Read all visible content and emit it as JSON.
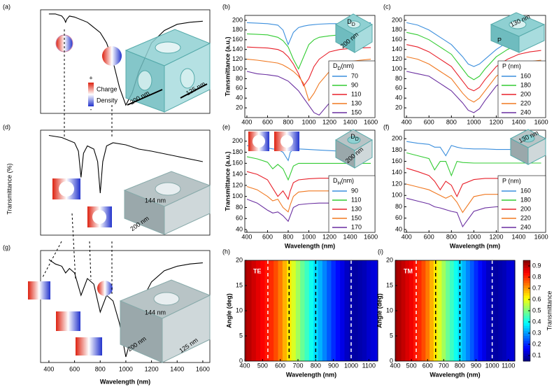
{
  "chart_data": [
    {
      "panel": "(a)",
      "type": "line",
      "color": "#000000",
      "xlim": [
        335,
        1655
      ],
      "ylim": [
        0,
        100
      ],
      "x": [
        400,
        450,
        500,
        520,
        530,
        540,
        560,
        600,
        700,
        800,
        850,
        900,
        950,
        1000,
        1050,
        1100,
        1200,
        1300,
        1400,
        1500,
        1600
      ],
      "series": [
        {
          "values": [
            96,
            96,
            94,
            91,
            88,
            91,
            94,
            93,
            88,
            78,
            68,
            50,
            25,
            8,
            20,
            40,
            68,
            80,
            86,
            88,
            89
          ]
        }
      ],
      "annotations": [
        "+",
        "Charge",
        "Density",
        "-",
        "200 nm",
        "125 nm"
      ]
    },
    {
      "panel": "(b)",
      "type": "line",
      "xlim": [
        380,
        1640
      ],
      "ylim": [
        0,
        210
      ],
      "xticks": [
        400,
        600,
        800,
        1000,
        1200,
        1400,
        1600
      ],
      "yticks": [
        20,
        40,
        60,
        80,
        100,
        120,
        140,
        160,
        180,
        200
      ],
      "ylabel": "Transmittance (a.u.)",
      "legend": "lower right",
      "legend_title": {
        "main": "D",
        "sub": "D",
        "unit": "(nm)"
      },
      "x": [
        400,
        500,
        600,
        700,
        750,
        800,
        850,
        900,
        950,
        1000,
        1050,
        1100,
        1200,
        1300,
        1400,
        1500,
        1600
      ],
      "series": [
        {
          "name": "70",
          "color": "#3c8fdd",
          "values": [
            195,
            194,
            193,
            190,
            180,
            150,
            175,
            185,
            188,
            190,
            191,
            192,
            193,
            193,
            194,
            194,
            195
          ]
        },
        {
          "name": "90",
          "color": "#33cc33",
          "values": [
            172,
            171,
            170,
            165,
            158,
            145,
            120,
            100,
            125,
            150,
            160,
            165,
            168,
            170,
            170,
            171,
            172
          ]
        },
        {
          "name": "110",
          "color": "#e8202a",
          "values": [
            145,
            144,
            143,
            140,
            135,
            125,
            110,
            90,
            65,
            80,
            105,
            120,
            135,
            140,
            142,
            143,
            144
          ]
        },
        {
          "name": "130",
          "color": "#f07820",
          "values": [
            120,
            118,
            115,
            112,
            108,
            102,
            95,
            85,
            70,
            35,
            50,
            70,
            95,
            108,
            115,
            118,
            120
          ]
        },
        {
          "name": "150",
          "color": "#6a2fa0",
          "values": [
            95,
            90,
            88,
            85,
            80,
            75,
            65,
            55,
            40,
            25,
            10,
            5,
            30,
            60,
            80,
            88,
            92
          ]
        }
      ],
      "annotations": [
        {
          "main": "D",
          "sub": "D"
        },
        "200 nm"
      ]
    },
    {
      "panel": "(c)",
      "type": "line",
      "xlim": [
        380,
        1640
      ],
      "ylim": [
        0,
        210
      ],
      "xticks": [
        400,
        600,
        800,
        1000,
        1200,
        1400,
        1600
      ],
      "yticks": [
        20,
        40,
        60,
        80,
        100,
        120,
        140,
        160,
        180,
        200
      ],
      "legend": "lower right",
      "legend_title": "P (nm)",
      "x": [
        400,
        500,
        600,
        700,
        800,
        900,
        950,
        1000,
        1050,
        1100,
        1200,
        1300,
        1400,
        1500,
        1600
      ],
      "series": [
        {
          "name": "160",
          "color": "#3c8fdd",
          "values": [
            195,
            190,
            180,
            165,
            150,
            125,
            110,
            105,
            110,
            120,
            140,
            155,
            165,
            170,
            172
          ]
        },
        {
          "name": "180",
          "color": "#33cc33",
          "values": [
            175,
            170,
            160,
            145,
            130,
            100,
            85,
            78,
            85,
            100,
            125,
            140,
            150,
            155,
            158
          ]
        },
        {
          "name": "200",
          "color": "#e8202a",
          "values": [
            150,
            145,
            135,
            120,
            105,
            75,
            60,
            55,
            62,
            78,
            105,
            120,
            130,
            135,
            138
          ]
        },
        {
          "name": "220",
          "color": "#f07820",
          "values": [
            125,
            120,
            110,
            95,
            80,
            50,
            38,
            32,
            40,
            55,
            85,
            100,
            110,
            115,
            118
          ]
        },
        {
          "name": "240",
          "color": "#6a2fa0",
          "values": [
            95,
            90,
            85,
            70,
            55,
            30,
            15,
            10,
            18,
            35,
            65,
            80,
            90,
            95,
            98
          ]
        }
      ],
      "annotations": [
        "130 nm",
        "P"
      ]
    },
    {
      "panel": "(d)",
      "type": "line",
      "color": "#000000",
      "xlim": [
        335,
        1655
      ],
      "ylim": [
        0,
        100
      ],
      "ylabel": "Transmittance (%)",
      "x": [
        400,
        500,
        600,
        630,
        650,
        670,
        700,
        750,
        780,
        800,
        820,
        850,
        900,
        1000,
        1100,
        1200,
        1400,
        1600
      ],
      "series": [
        {
          "values": [
            95,
            93,
            88,
            80,
            55,
            78,
            85,
            82,
            70,
            40,
            70,
            85,
            88,
            86,
            82,
            80,
            75,
            70
          ]
        }
      ],
      "annotations": [
        "144 nm",
        "200 nm"
      ]
    },
    {
      "panel": "(e)",
      "type": "line",
      "xlim": [
        380,
        1640
      ],
      "ylim": [
        35,
        220
      ],
      "xticks": [
        400,
        600,
        800,
        1000,
        1200,
        1400,
        1600
      ],
      "yticks": [
        40,
        60,
        80,
        100,
        120,
        140,
        160,
        180,
        200
      ],
      "xlabel": "Wavelength (nm)",
      "ylabel": "Transmittance (a.u.)",
      "legend": "lower right",
      "legend_title": {
        "main": "D",
        "sub": "H",
        "unit": "(nm)"
      },
      "x": [
        400,
        500,
        600,
        650,
        700,
        750,
        800,
        820,
        850,
        900,
        1000,
        1100,
        1200,
        1300,
        1400,
        1500,
        1600
      ],
      "series": [
        {
          "name": "90",
          "color": "#3c8fdd",
          "values": [
            192,
            190,
            188,
            186,
            185,
            180,
            165,
            180,
            185,
            186,
            185,
            184,
            183,
            182,
            182,
            182,
            182
          ]
        },
        {
          "name": "110",
          "color": "#33cc33",
          "values": [
            172,
            168,
            162,
            150,
            158,
            150,
            130,
            140,
            155,
            160,
            160,
            160,
            160,
            160,
            160,
            160,
            160
          ]
        },
        {
          "name": "130",
          "color": "#e8202a",
          "values": [
            145,
            140,
            130,
            115,
            100,
            110,
            95,
            110,
            125,
            130,
            132,
            133,
            133,
            133,
            133,
            133,
            133
          ]
        },
        {
          "name": "150",
          "color": "#f07820",
          "values": [
            118,
            112,
            100,
            92,
            95,
            80,
            72,
            85,
            100,
            108,
            110,
            110,
            110,
            110,
            110,
            110,
            110
          ]
        },
        {
          "name": "170",
          "color": "#6a2fa0",
          "values": [
            95,
            88,
            75,
            70,
            72,
            65,
            55,
            65,
            80,
            85,
            87,
            88,
            88,
            88,
            88,
            88,
            88
          ]
        }
      ],
      "annotations": [
        {
          "main": "D",
          "sub": "D"
        },
        "200 nm"
      ]
    },
    {
      "panel": "(f)",
      "type": "line",
      "xlim": [
        380,
        1640
      ],
      "ylim": [
        35,
        215
      ],
      "xticks": [
        400,
        600,
        800,
        1000,
        1200,
        1400,
        1600
      ],
      "yticks": [
        40,
        60,
        80,
        100,
        120,
        140,
        160,
        180,
        200
      ],
      "xlabel": "Wavelength (nm)",
      "legend": "lower right",
      "legend_title": "P (nm)",
      "x": [
        400,
        500,
        600,
        650,
        700,
        750,
        800,
        850,
        900,
        1000,
        1100,
        1200,
        1300,
        1400,
        1500,
        1600
      ],
      "series": [
        {
          "name": "160",
          "color": "#3c8fdd",
          "values": [
            195,
            192,
            190,
            185,
            185,
            170,
            188,
            185,
            183,
            182,
            182,
            181,
            181,
            181,
            181,
            181
          ]
        },
        {
          "name": "180",
          "color": "#33cc33",
          "values": [
            175,
            170,
            165,
            145,
            160,
            160,
            135,
            160,
            158,
            157,
            157,
            157,
            157,
            157,
            157,
            157
          ]
        },
        {
          "name": "200",
          "color": "#e8202a",
          "values": [
            148,
            142,
            135,
            125,
            110,
            125,
            118,
            98,
            120,
            128,
            130,
            130,
            130,
            130,
            130,
            130
          ]
        },
        {
          "name": "220",
          "color": "#f07820",
          "values": [
            120,
            115,
            110,
            105,
            100,
            95,
            100,
            88,
            70,
            98,
            102,
            102,
            102,
            102,
            102,
            102
          ]
        },
        {
          "name": "240",
          "color": "#6a2fa0",
          "values": [
            95,
            90,
            85,
            80,
            78,
            75,
            72,
            70,
            45,
            72,
            78,
            80,
            80,
            80,
            80,
            80
          ]
        }
      ],
      "annotations": [
        "130 nm"
      ]
    },
    {
      "panel": "(g)",
      "type": "line",
      "color": "#000000",
      "xlim": [
        335,
        1655
      ],
      "ylim": [
        0,
        100
      ],
      "xticks": [
        400,
        600,
        800,
        1000,
        1200,
        1400,
        1600
      ],
      "xlabel": "Wavelength (nm)",
      "x": [
        400,
        450,
        500,
        530,
        560,
        600,
        650,
        700,
        750,
        800,
        850,
        900,
        950,
        1000,
        1050,
        1100,
        1200,
        1300,
        1400,
        1500,
        1600
      ],
      "series": [
        {
          "values": [
            92,
            88,
            86,
            80,
            84,
            80,
            60,
            75,
            70,
            45,
            60,
            55,
            35,
            5,
            25,
            50,
            72,
            82,
            86,
            88,
            89
          ]
        }
      ],
      "annotations": [
        "144 nm",
        "200 nm",
        "125 nm"
      ]
    },
    {
      "panel": "(h)",
      "type": "heatmap",
      "colormap": "jet",
      "clim": [
        0.05,
        0.95
      ],
      "xlim": [
        400,
        1150
      ],
      "ylim": [
        0,
        20
      ],
      "xticks": [
        400,
        500,
        600,
        700,
        800,
        900,
        1000,
        1100
      ],
      "yticks": [
        0,
        5,
        10,
        15,
        20
      ],
      "xlabel": "Wavelength (nm)",
      "ylabel": "Angle (deg)",
      "x": [
        400,
        425,
        450,
        475,
        500,
        525,
        550,
        575,
        600,
        625,
        650,
        675,
        700,
        725,
        750,
        775,
        800,
        825,
        850,
        875,
        900,
        925,
        950,
        975,
        1000,
        1025,
        1050,
        1075,
        1100,
        1125,
        1150
      ],
      "values": [
        0.92,
        0.9,
        0.88,
        0.86,
        0.84,
        0.82,
        0.8,
        0.77,
        0.73,
        0.68,
        0.63,
        0.58,
        0.53,
        0.48,
        0.44,
        0.4,
        0.36,
        0.32,
        0.28,
        0.24,
        0.2,
        0.17,
        0.14,
        0.11,
        0.09,
        0.08,
        0.09,
        0.1,
        0.12,
        0.13,
        0.14
      ],
      "vlines": [
        {
          "x": 530,
          "color": "#ffffff"
        },
        {
          "x": 650,
          "color": "#000000"
        },
        {
          "x": 800,
          "color": "#000000"
        },
        {
          "x": 1000,
          "color": "#ffffff"
        }
      ],
      "annotations": [
        "TE"
      ]
    },
    {
      "panel": "(i)",
      "type": "heatmap",
      "colormap": "jet",
      "clim": [
        0.05,
        0.95
      ],
      "xlim": [
        400,
        1140
      ],
      "ylim": [
        0,
        20
      ],
      "xticks": [
        400,
        500,
        600,
        700,
        800,
        900,
        1000,
        1100
      ],
      "yticks": [
        0,
        5,
        10,
        15,
        20
      ],
      "xlabel": "Wavelength (nm)",
      "ylabel": "Angle (deg)",
      "x": [
        400,
        425,
        450,
        475,
        500,
        525,
        550,
        575,
        600,
        625,
        650,
        675,
        700,
        725,
        750,
        775,
        800,
        825,
        850,
        875,
        900,
        925,
        950,
        975,
        1000,
        1025,
        1050,
        1075,
        1100,
        1125
      ],
      "values": [
        0.93,
        0.91,
        0.89,
        0.87,
        0.85,
        0.82,
        0.8,
        0.77,
        0.73,
        0.68,
        0.63,
        0.58,
        0.53,
        0.48,
        0.44,
        0.4,
        0.36,
        0.32,
        0.28,
        0.24,
        0.2,
        0.17,
        0.14,
        0.11,
        0.09,
        0.08,
        0.09,
        0.1,
        0.12,
        0.13
      ],
      "vlines": [
        {
          "x": 530,
          "color": "#ffffff"
        },
        {
          "x": 650,
          "color": "#000000"
        },
        {
          "x": 800,
          "color": "#000000"
        },
        {
          "x": 1000,
          "color": "#ffffff"
        }
      ],
      "colorbar": {
        "ticks": [
          0.1,
          0.2,
          0.3,
          0.4,
          0.5,
          0.6,
          0.7,
          0.8,
          0.9
        ],
        "label": "Transmittance"
      },
      "annotations": [
        "TM"
      ]
    }
  ]
}
